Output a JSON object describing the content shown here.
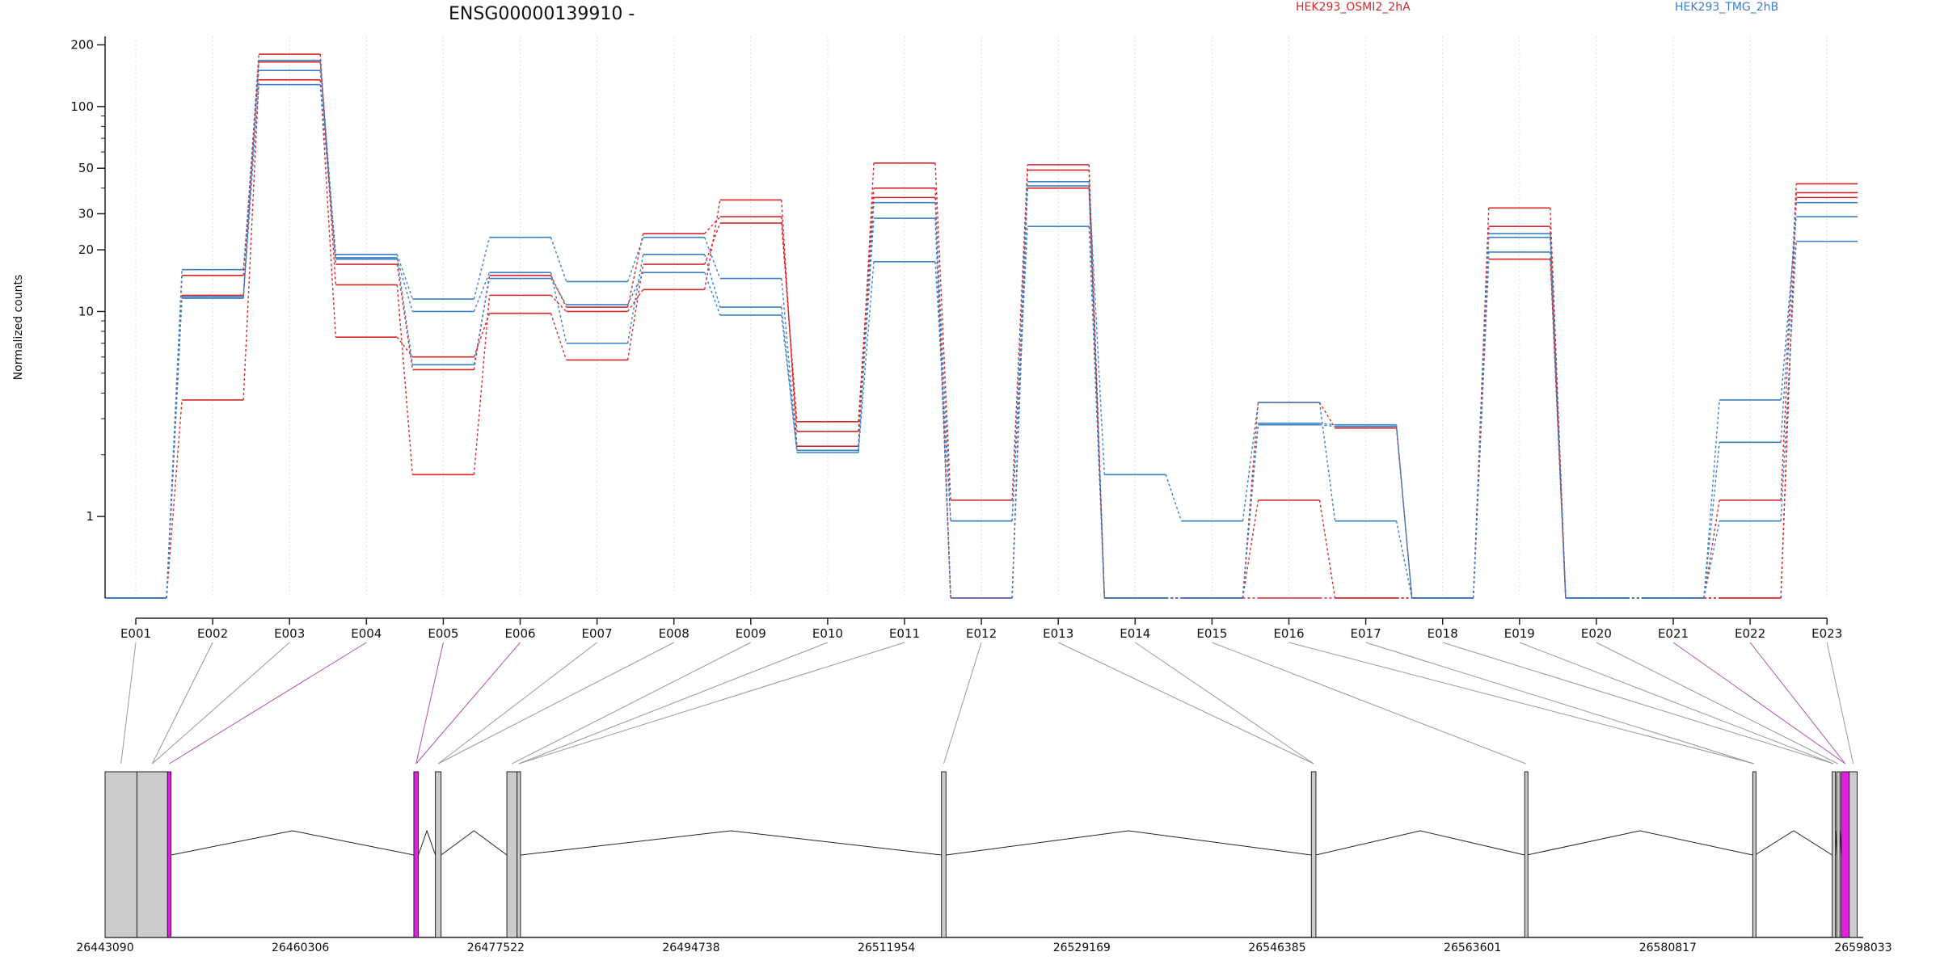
{
  "chart_data": {
    "type": "line",
    "title": "ENSG00000139910 -",
    "ylabel": "Normalized counts",
    "y_scale": "log",
    "ylim": [
      0.4,
      220
    ],
    "y_ticks": [
      "1",
      "10",
      "20",
      "30",
      "50",
      "100",
      "200"
    ],
    "y_tick_values": [
      1,
      10,
      20,
      30,
      50,
      100,
      200
    ],
    "grid": "vertical-dotted",
    "categories": [
      "E001",
      "E002",
      "E003",
      "E004",
      "E005",
      "E006",
      "E007",
      "E008",
      "E009",
      "E010",
      "E011",
      "E012",
      "E013",
      "E014",
      "E015",
      "E016",
      "E017",
      "E018",
      "E019",
      "E020",
      "E021",
      "E022",
      "E023"
    ],
    "legend": [
      {
        "label": "HEK293_OSMI2_2hA",
        "color": "#d62728"
      },
      {
        "label": "HEK293_TMG_2hB",
        "color": "#3b7fc4"
      }
    ],
    "colors": {
      "condition_a": "#d62728",
      "condition_b": "#3b7fc4",
      "highlight_exon": "#e020e0",
      "exon": "#cccccc",
      "connector": "#999999",
      "connector_highlight": "#b050b0"
    },
    "series": [
      {
        "group": "a",
        "values": [
          0.4,
          15,
          180,
          13.5,
          1.6,
          12,
          10,
          12.8,
          35,
          2.2,
          53,
          1.2,
          52,
          0.4,
          0.4,
          1.2,
          0.4,
          0.4,
          32,
          0.4,
          0.4,
          1.2,
          42
        ]
      },
      {
        "group": "a",
        "values": [
          0.4,
          12,
          165,
          17,
          5.2,
          15,
          10.5,
          24,
          29,
          2.6,
          36,
          0.4,
          49,
          0.4,
          0.4,
          3.6,
          2.7,
          0.4,
          26,
          0.4,
          0.4,
          0.4,
          36
        ]
      },
      {
        "group": "a",
        "values": [
          0.4,
          3.7,
          135,
          7.5,
          6.0,
          9.8,
          5.8,
          17,
          27,
          2.9,
          40,
          0.4,
          40,
          0.4,
          0.4,
          0.4,
          0.4,
          0.4,
          18,
          0.4,
          0.4,
          0.4,
          38
        ]
      },
      {
        "group": "b",
        "values": [
          0.4,
          16,
          150,
          19,
          11.5,
          23,
          14,
          23,
          14.5,
          2.1,
          34,
          0.95,
          43,
          1.6,
          0.95,
          3.6,
          0.95,
          0.4,
          24,
          0.4,
          0.4,
          3.7,
          29
        ]
      },
      {
        "group": "b",
        "values": [
          0.4,
          11.8,
          128,
          18,
          10,
          15.5,
          7,
          19,
          10.5,
          2.05,
          17.5,
          0.95,
          26,
          0.4,
          0.4,
          2.85,
          2.8,
          0.4,
          23,
          0.4,
          0.4,
          0.95,
          22
        ]
      },
      {
        "group": "b",
        "values": [
          0.4,
          11.6,
          168,
          18.3,
          5.5,
          14.5,
          10.8,
          15.5,
          9.6,
          2.1,
          28.5,
          0.4,
          41,
          0.4,
          0.4,
          2.8,
          2.75,
          0.4,
          19.5,
          0.4,
          0.4,
          2.3,
          34
        ]
      }
    ],
    "genomic_axis": {
      "tick_labels": [
        "26443090",
        "26460306",
        "26477522",
        "26494738",
        "26511954",
        "26529169",
        "26546385",
        "26563601",
        "26580817",
        "26598033"
      ],
      "range": [
        26443090,
        26598033
      ],
      "exons": [
        {
          "id": "E001",
          "start": 26443090,
          "end": 26445900,
          "highlighted": false
        },
        {
          "id": "E002",
          "start": 26445900,
          "end": 26448600,
          "highlighted": false
        },
        {
          "id": "E003",
          "start": 26448600,
          "end": 26448900,
          "highlighted": true
        },
        {
          "id": "E004",
          "start": 26470300,
          "end": 26470700,
          "highlighted": true
        },
        {
          "id": "E005",
          "start": 26472200,
          "end": 26472700,
          "highlighted": false
        },
        {
          "id": "E006",
          "start": 26478500,
          "end": 26479400,
          "highlighted": false
        },
        {
          "id": "E007",
          "start": 26479400,
          "end": 26479700,
          "highlighted": false
        },
        {
          "id": "E008",
          "start": 26516800,
          "end": 26517200,
          "highlighted": false
        },
        {
          "id": "E009",
          "start": 26549400,
          "end": 26549800,
          "highlighted": false
        },
        {
          "id": "E010",
          "start": 26568200,
          "end": 26568400,
          "highlighted": false
        },
        {
          "id": "E011",
          "start": 26588300,
          "end": 26588500,
          "highlighted": false
        },
        {
          "id": "E012",
          "start": 26595300,
          "end": 26595500,
          "highlighted": false
        },
        {
          "id": "E013",
          "start": 26595700,
          "end": 26595900,
          "highlighted": false
        },
        {
          "id": "E014",
          "start": 26596100,
          "end": 26596800,
          "highlighted": true
        },
        {
          "id": "E015",
          "start": 26596800,
          "end": 26597500,
          "highlighted": false
        }
      ]
    }
  }
}
